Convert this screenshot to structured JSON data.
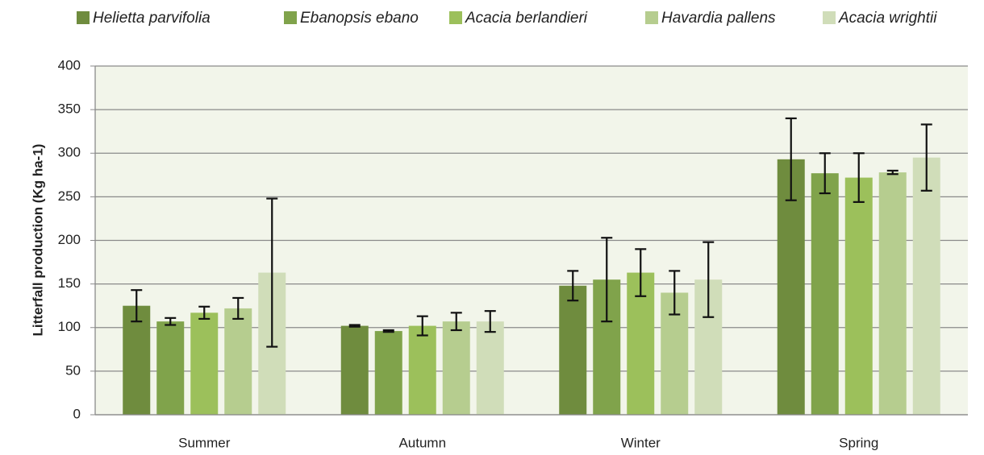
{
  "chart_data": {
    "type": "bar",
    "y_label": "Litterfall production  (Kg ha-1)",
    "categories": [
      "Summer",
      "Autumn",
      "Winter",
      "Spring"
    ],
    "series": [
      {
        "name": "Helietta parvifolia",
        "color": "#6f8c3e",
        "values": [
          125,
          102,
          148,
          293
        ],
        "errors": [
          18,
          1,
          17,
          47
        ]
      },
      {
        "name": "Ebanopsis ebano",
        "color": "#80a34b",
        "values": [
          107,
          96,
          155,
          277
        ],
        "errors": [
          4,
          1,
          48,
          23
        ]
      },
      {
        "name": "Acacia berlandieri",
        "color": "#9cc05b",
        "values": [
          117,
          102,
          163,
          272
        ],
        "errors": [
          7,
          11,
          27,
          28
        ]
      },
      {
        "name": "Havardia pallens",
        "color": "#b6cd8f",
        "values": [
          122,
          107,
          140,
          278
        ],
        "errors": [
          12,
          10,
          25,
          2
        ]
      },
      {
        "name": "Acacia wrightii",
        "color": "#d0ddb9",
        "values": [
          163,
          107,
          155,
          295
        ],
        "errors": [
          85,
          12,
          43,
          38
        ]
      }
    ],
    "ylim": [
      0,
      400
    ],
    "yticks": [
      0,
      50,
      100,
      150,
      200,
      250,
      300,
      350,
      400
    ],
    "grid": true
  }
}
